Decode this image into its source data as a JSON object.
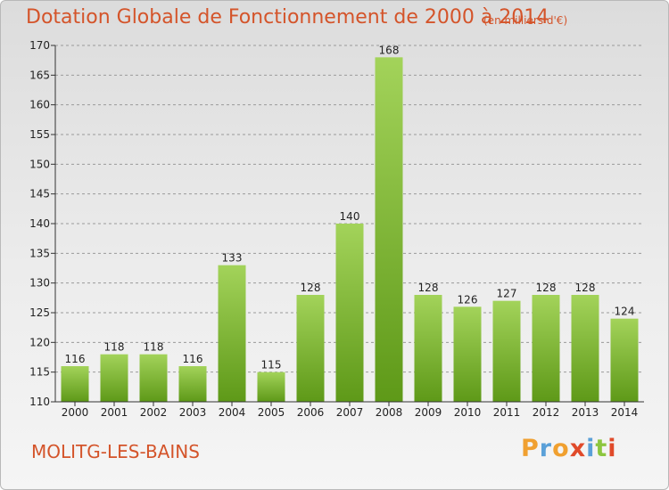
{
  "title": "Dotation Globale de Fonctionnement de 2000 à 2014",
  "subtitle": "(en milliers d'€)",
  "commune": "MOLITG-LES-BAINS",
  "logo": {
    "letters": [
      "P",
      "r",
      "o",
      "x",
      "i",
      "t",
      "i"
    ],
    "colors": [
      "#f0a030",
      "#5aa0d8",
      "#f0a030",
      "#e04a2a",
      "#5aa0d8",
      "#8cc63f",
      "#e04a2a"
    ]
  },
  "colors": {
    "bar_light": "#a3d35a",
    "bar_dark": "#5e9918",
    "title": "#d4542a"
  },
  "chart_data": {
    "type": "bar",
    "categories": [
      "2000",
      "2001",
      "2002",
      "2003",
      "2004",
      "2005",
      "2006",
      "2007",
      "2008",
      "2009",
      "2010",
      "2011",
      "2012",
      "2013",
      "2014"
    ],
    "values": [
      116,
      118,
      118,
      116,
      133,
      115,
      128,
      140,
      168,
      128,
      126,
      127,
      128,
      128,
      124
    ],
    "ylim": [
      110,
      170
    ],
    "yticks": [
      110,
      115,
      120,
      125,
      130,
      135,
      140,
      145,
      150,
      155,
      160,
      165,
      170
    ],
    "grid": "dashed horizontal",
    "legend": "none"
  }
}
